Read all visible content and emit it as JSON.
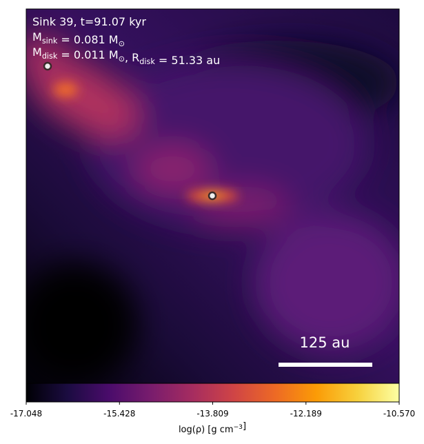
{
  "chart_data": {
    "type": "image",
    "annotations": [
      {
        "parts": [
          {
            "text": "Sink 39, t=91.07 kyr"
          }
        ]
      },
      {
        "parts": [
          {
            "text": "M",
            "sub": "sink"
          },
          {
            "text": " = 0.081 M",
            "sub": "⊙"
          }
        ]
      },
      {
        "parts": [
          {
            "text": "M",
            "sub": "disk"
          },
          {
            "text": " = 0.011 M",
            "sub": "⊙"
          },
          {
            "text": ", R",
            "sub": "disk"
          },
          {
            "text": " = 51.33 au"
          }
        ]
      }
    ],
    "scale_bar": "125 au",
    "colorbar": {
      "label": {
        "parts": [
          {
            "text": "log(ρ) [g cm",
            "sup": "−3"
          },
          {
            "text": "]"
          }
        ]
      },
      "lim": [
        -17.048,
        -10.57
      ],
      "ticks": [
        -17.048,
        -15.428,
        -13.809,
        -12.189,
        {
          "value": -10.57,
          "label": "-10.570"
        }
      ],
      "colormap": [
        "#000004",
        "#1b0c41",
        "#4a0c6b",
        "#781c6d",
        "#a52c60",
        "#cf4446",
        "#ed6925",
        "#fb9b06",
        "#f7d13d",
        "#fcffa4"
      ]
    }
  }
}
